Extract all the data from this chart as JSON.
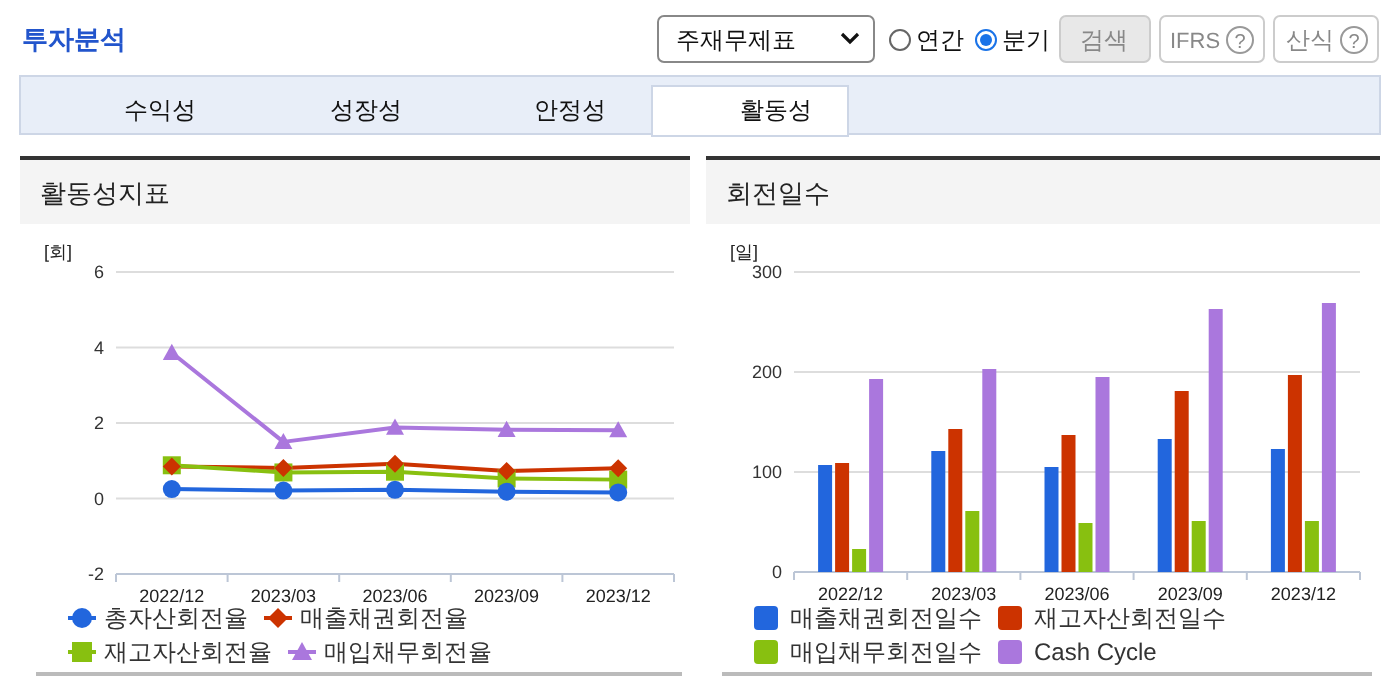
{
  "chart_data": [
    {
      "type": "other",
      "title": "투자분석",
      "annotations": [
        "주재무제표",
        "연간",
        "분기",
        "검색",
        "IFRS",
        "산식",
        "수익성",
        "성장성",
        "안정성",
        "활동성",
        "?",
        "?"
      ]
    },
    {
      "type": "line",
      "title": "활동성지표",
      "ylabel": "[회]",
      "categories": [
        "2022/12",
        "2023/03",
        "2023/06",
        "2023/09",
        "2023/12"
      ],
      "ylim": [
        -2,
        6
      ],
      "yticks": [
        -2,
        0,
        2,
        4,
        6
      ],
      "grid": "y",
      "legend": "bottom",
      "line_style": "solid",
      "series": [
        {
          "name": "총자산회전율",
          "color": "#2266dd",
          "marker": "circle",
          "values": [
            0.25,
            0.21,
            0.23,
            0.18,
            0.16
          ]
        },
        {
          "name": "매출채권회전율",
          "color": "#cc3300",
          "marker": "diamond",
          "values": [
            0.85,
            0.81,
            0.92,
            0.73,
            0.8
          ]
        },
        {
          "name": "재고자산회전율",
          "color": "#88c010",
          "marker": "square",
          "values": [
            0.88,
            0.69,
            0.71,
            0.53,
            0.5
          ]
        },
        {
          "name": "매입채무회전율",
          "color": "#aa77dd",
          "marker": "triangle",
          "values": [
            3.86,
            1.5,
            1.88,
            1.82,
            1.81
          ]
        }
      ]
    },
    {
      "type": "bar",
      "title": "회전일수",
      "ylabel": "[일]",
      "categories": [
        "2022/12",
        "2023/03",
        "2023/06",
        "2023/09",
        "2023/12"
      ],
      "ylim": [
        0,
        300
      ],
      "yticks": [
        0,
        100,
        200,
        300
      ],
      "grid": "y",
      "legend": "bottom",
      "series": [
        {
          "name": "매출채권회전일수",
          "color": "#2266dd",
          "values": [
            107,
            121,
            105,
            133,
            123
          ]
        },
        {
          "name": "재고자산회전일수",
          "color": "#cc3300",
          "values": [
            109,
            143,
            137,
            181,
            197
          ]
        },
        {
          "name": "매입채무회전일수",
          "color": "#88c010",
          "values": [
            23,
            61,
            49,
            51,
            51
          ]
        },
        {
          "name": "Cash Cycle",
          "color": "#aa77dd",
          "values": [
            193,
            203,
            195,
            263,
            269
          ]
        }
      ]
    }
  ]
}
